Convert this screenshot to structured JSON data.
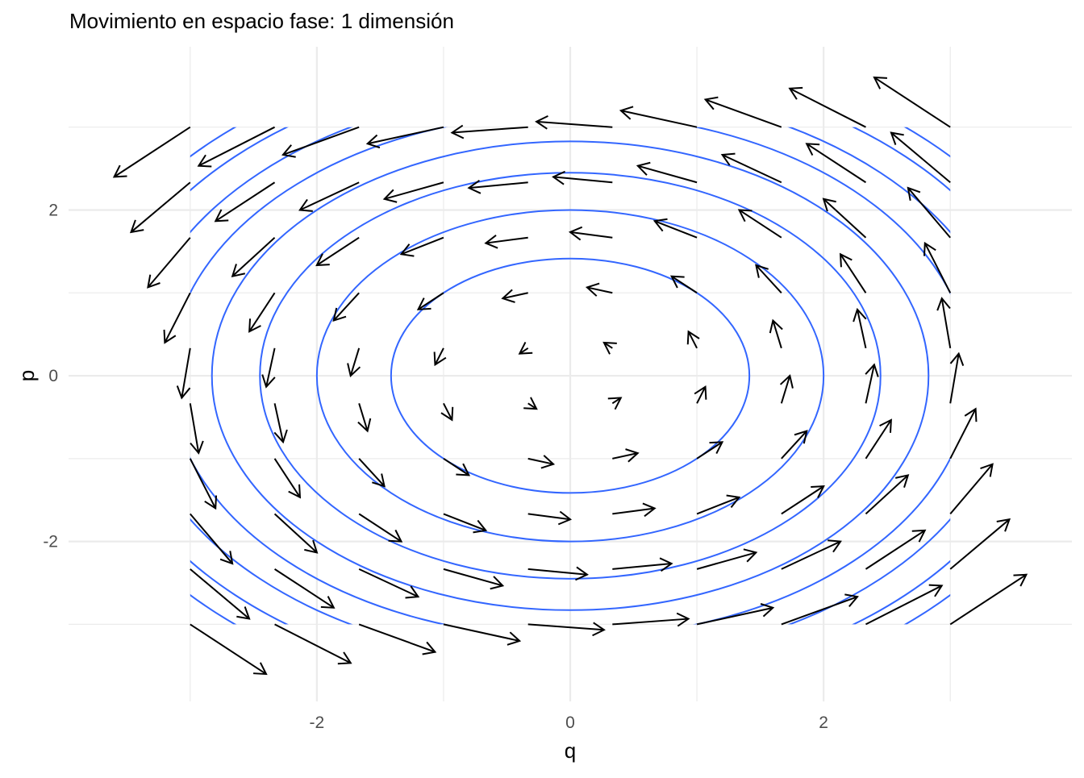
{
  "chart_data": {
    "type": "quiver",
    "title": "Movimiento en espacio fase: 1 dimensión",
    "xlabel": "q",
    "ylabel": "p",
    "xlim": [
      -3.96,
      3.96
    ],
    "ylim": [
      -3.93,
      3.97
    ],
    "x_ticks": [
      -2,
      0,
      2
    ],
    "x_tick_labels": [
      "-2",
      "0",
      "2"
    ],
    "y_ticks": [
      -2,
      0,
      2
    ],
    "y_tick_labels": [
      "-2",
      "0",
      "2"
    ],
    "minor_grid": [
      -3,
      -1,
      1,
      3
    ],
    "grid": true,
    "legend": "none",
    "arrow_grid": {
      "q": [
        -3,
        -2.333,
        -1.667,
        -1,
        -0.333,
        0.333,
        1,
        1.667,
        2.333,
        3
      ],
      "p": [
        -3,
        -2.333,
        -1.667,
        -1,
        -0.333,
        0.333,
        1,
        1.667,
        2.333,
        3
      ]
    },
    "vector_field": {
      "dq": "-p",
      "dp": "q",
      "scale": 0.2
    },
    "contours": {
      "function": "(q^2 + p^2) / 2",
      "levels": [
        1,
        2,
        3,
        4,
        5,
        6,
        7,
        8
      ],
      "domain_q": [
        -3,
        3
      ],
      "domain_p": [
        -3,
        3
      ]
    },
    "colors": {
      "contour": "#3366FF",
      "arrow": "#000000",
      "grid": "#EBEBEB",
      "text": "#4D4D4D"
    }
  }
}
